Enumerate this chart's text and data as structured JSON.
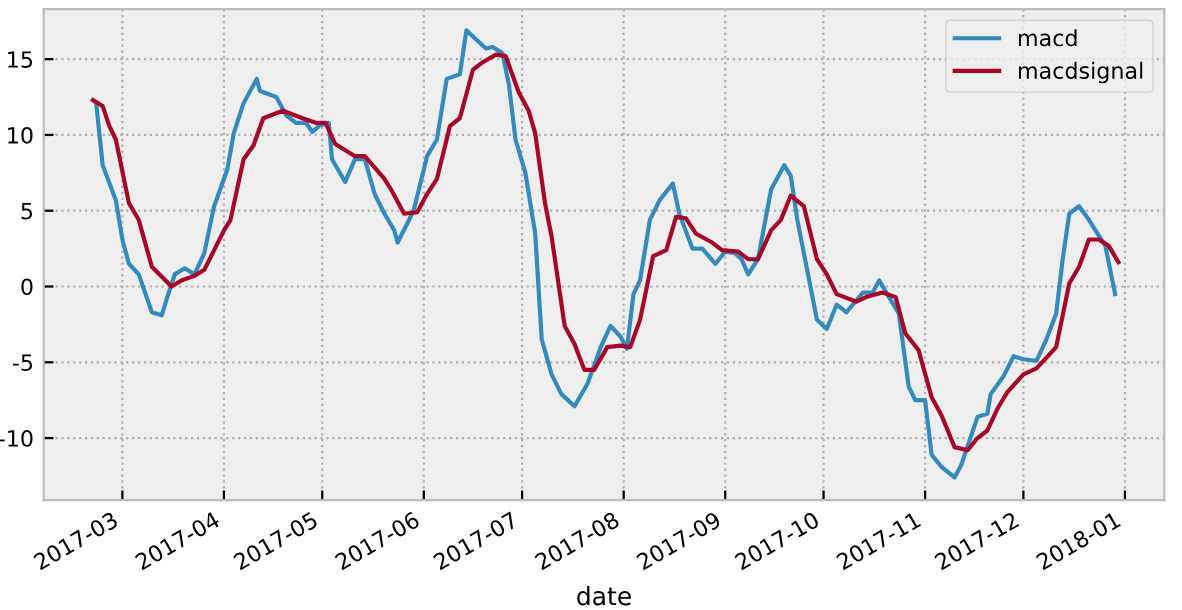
{
  "chart_data": {
    "type": "line",
    "xlabel": "date",
    "xlim": [
      "2017-02-05",
      "2018-01-13"
    ],
    "ylim": [
      -14.1,
      18.3
    ],
    "xticks": [
      {
        "value": "2017-03-01",
        "label": "2017-03"
      },
      {
        "value": "2017-04-01",
        "label": "2017-04"
      },
      {
        "value": "2017-05-01",
        "label": "2017-05"
      },
      {
        "value": "2017-06-01",
        "label": "2017-06"
      },
      {
        "value": "2017-07-01",
        "label": "2017-07"
      },
      {
        "value": "2017-08-01",
        "label": "2017-08"
      },
      {
        "value": "2017-09-01",
        "label": "2017-09"
      },
      {
        "value": "2017-10-01",
        "label": "2017-10"
      },
      {
        "value": "2017-11-01",
        "label": "2017-11"
      },
      {
        "value": "2017-12-01",
        "label": "2017-12"
      },
      {
        "value": "2018-01-01",
        "label": "2018-01"
      }
    ],
    "yticks": [
      -10,
      -5,
      0,
      5,
      10,
      15
    ],
    "grid": true,
    "legend": "top right",
    "line_style": "solid",
    "marker": "none",
    "series": [
      {
        "name": "macd",
        "color": "#348abd",
        "x": [
          "2017-02-21",
          "2017-02-23",
          "2017-02-27",
          "2017-03-01",
          "2017-03-03",
          "2017-03-06",
          "2017-03-10",
          "2017-03-13",
          "2017-03-15",
          "2017-03-17",
          "2017-03-20",
          "2017-03-23",
          "2017-03-26",
          "2017-03-29",
          "2017-04-02",
          "2017-04-04",
          "2017-04-07",
          "2017-04-11",
          "2017-04-12",
          "2017-04-17",
          "2017-04-20",
          "2017-04-23",
          "2017-04-26",
          "2017-04-28",
          "2017-04-30",
          "2017-05-03",
          "2017-05-04",
          "2017-05-08",
          "2017-05-11",
          "2017-05-14",
          "2017-05-17",
          "2017-05-20",
          "2017-05-23",
          "2017-05-24",
          "2017-05-28",
          "2017-05-29",
          "2017-06-02",
          "2017-06-05",
          "2017-06-08",
          "2017-06-12",
          "2017-06-14",
          "2017-06-17",
          "2017-06-20",
          "2017-06-22",
          "2017-06-25",
          "2017-06-27",
          "2017-06-29",
          "2017-07-02",
          "2017-07-05",
          "2017-07-07",
          "2017-07-10",
          "2017-07-13",
          "2017-07-17",
          "2017-07-21",
          "2017-07-25",
          "2017-07-28",
          "2017-07-31",
          "2017-08-02",
          "2017-08-04",
          "2017-08-06",
          "2017-08-09",
          "2017-08-12",
          "2017-08-16",
          "2017-08-18",
          "2017-08-22",
          "2017-08-25",
          "2017-08-29",
          "2017-09-01",
          "2017-09-04",
          "2017-09-06",
          "2017-09-08",
          "2017-09-11",
          "2017-09-15",
          "2017-09-19",
          "2017-09-21",
          "2017-09-23",
          "2017-09-25",
          "2017-09-29",
          "2017-10-02",
          "2017-10-05",
          "2017-10-08",
          "2017-10-13",
          "2017-10-16",
          "2017-10-18",
          "2017-10-21",
          "2017-10-24",
          "2017-10-27",
          "2017-10-29",
          "2017-11-01",
          "2017-11-03",
          "2017-11-06",
          "2017-11-10",
          "2017-11-12",
          "2017-11-17",
          "2017-11-20",
          "2017-11-21",
          "2017-11-25",
          "2017-11-28",
          "2017-12-01",
          "2017-12-05",
          "2017-12-08",
          "2017-12-11",
          "2017-12-13",
          "2017-12-15",
          "2017-12-18",
          "2017-12-21",
          "2017-12-23",
          "2017-12-26",
          "2017-12-29"
        ],
        "values": [
          12.1,
          8.0,
          5.7,
          3.1,
          1.5,
          0.8,
          -1.7,
          -1.9,
          -0.5,
          0.8,
          1.2,
          0.8,
          2.2,
          5.3,
          7.7,
          10.1,
          12.1,
          13.7,
          12.9,
          12.5,
          11.3,
          10.8,
          10.8,
          10.2,
          10.6,
          10.8,
          8.4,
          6.9,
          8.4,
          8.4,
          6.1,
          4.8,
          3.7,
          2.9,
          4.6,
          5.1,
          8.6,
          9.7,
          13.7,
          14.0,
          16.9,
          16.3,
          15.7,
          15.8,
          15.4,
          13.3,
          9.7,
          7.5,
          3.5,
          -3.5,
          -5.8,
          -7.1,
          -7.9,
          -6.4,
          -4.0,
          -2.6,
          -3.3,
          -4.1,
          -0.5,
          0.4,
          4.4,
          5.7,
          6.8,
          4.8,
          2.5,
          2.5,
          1.5,
          2.3,
          2.2,
          1.8,
          0.8,
          1.8,
          6.4,
          8.0,
          7.3,
          4.4,
          2.2,
          -2.2,
          -2.8,
          -1.2,
          -1.7,
          -0.4,
          -0.4,
          0.4,
          -0.7,
          -1.8,
          -6.6,
          -7.5,
          -7.5,
          -11.1,
          -11.9,
          -12.6,
          -11.8,
          -8.6,
          -8.4,
          -7.1,
          -5.9,
          -4.6,
          -4.8,
          -4.9,
          -3.5,
          -1.8,
          1.8,
          4.8,
          5.3,
          4.4,
          3.7,
          2.7,
          -0.5
        ]
      },
      {
        "name": "macdsignal",
        "color": "#a60628",
        "x": [
          "2017-02-20",
          "2017-02-23",
          "2017-02-25",
          "2017-02-27",
          "2017-03-03",
          "2017-03-06",
          "2017-03-10",
          "2017-03-16",
          "2017-03-19",
          "2017-03-23",
          "2017-03-26",
          "2017-04-01",
          "2017-04-03",
          "2017-04-07",
          "2017-04-10",
          "2017-04-13",
          "2017-04-19",
          "2017-04-25",
          "2017-04-29",
          "2017-05-02",
          "2017-05-05",
          "2017-05-11",
          "2017-05-14",
          "2017-05-20",
          "2017-05-22",
          "2017-05-26",
          "2017-05-30",
          "2017-06-02",
          "2017-06-05",
          "2017-06-09",
          "2017-06-12",
          "2017-06-16",
          "2017-06-19",
          "2017-06-23",
          "2017-06-26",
          "2017-06-30",
          "2017-07-03",
          "2017-07-05",
          "2017-07-08",
          "2017-07-10",
          "2017-07-14",
          "2017-07-17",
          "2017-07-20",
          "2017-07-23",
          "2017-07-27",
          "2017-07-31",
          "2017-08-03",
          "2017-08-06",
          "2017-08-10",
          "2017-08-14",
          "2017-08-17",
          "2017-08-20",
          "2017-08-23",
          "2017-08-28",
          "2017-08-31",
          "2017-09-05",
          "2017-09-08",
          "2017-09-11",
          "2017-09-15",
          "2017-09-18",
          "2017-09-21",
          "2017-09-25",
          "2017-09-29",
          "2017-10-02",
          "2017-10-05",
          "2017-10-11",
          "2017-10-14",
          "2017-10-19",
          "2017-10-23",
          "2017-10-26",
          "2017-10-30",
          "2017-11-03",
          "2017-11-06",
          "2017-11-10",
          "2017-11-14",
          "2017-11-17",
          "2017-11-20",
          "2017-11-23",
          "2017-11-26",
          "2017-12-01",
          "2017-12-05",
          "2017-12-11",
          "2017-12-15",
          "2017-12-18",
          "2017-12-21",
          "2017-12-24",
          "2017-12-27",
          "2017-12-30"
        ],
        "values": [
          12.3,
          11.9,
          10.6,
          9.7,
          5.5,
          4.4,
          1.3,
          0.0,
          0.4,
          0.7,
          1.1,
          3.7,
          4.4,
          8.4,
          9.3,
          11.1,
          11.6,
          11.1,
          10.8,
          10.8,
          9.4,
          8.6,
          8.6,
          7.1,
          6.4,
          4.8,
          4.9,
          6.1,
          7.1,
          10.6,
          11.1,
          14.3,
          14.8,
          15.3,
          15.2,
          12.8,
          11.6,
          10.1,
          5.5,
          3.3,
          -2.6,
          -3.8,
          -5.5,
          -5.5,
          -4.0,
          -3.9,
          -4.0,
          -2.2,
          2.0,
          2.4,
          4.6,
          4.5,
          3.5,
          2.9,
          2.4,
          2.3,
          1.8,
          1.8,
          3.7,
          4.4,
          6.0,
          5.3,
          1.8,
          0.8,
          -0.5,
          -1.0,
          -0.7,
          -0.4,
          -0.7,
          -3.1,
          -4.2,
          -7.3,
          -8.5,
          -10.6,
          -10.8,
          -10.0,
          -9.5,
          -8.1,
          -7.0,
          -5.8,
          -5.4,
          -4.0,
          0.2,
          1.3,
          3.1,
          3.1,
          2.7,
          1.6
        ]
      }
    ]
  }
}
